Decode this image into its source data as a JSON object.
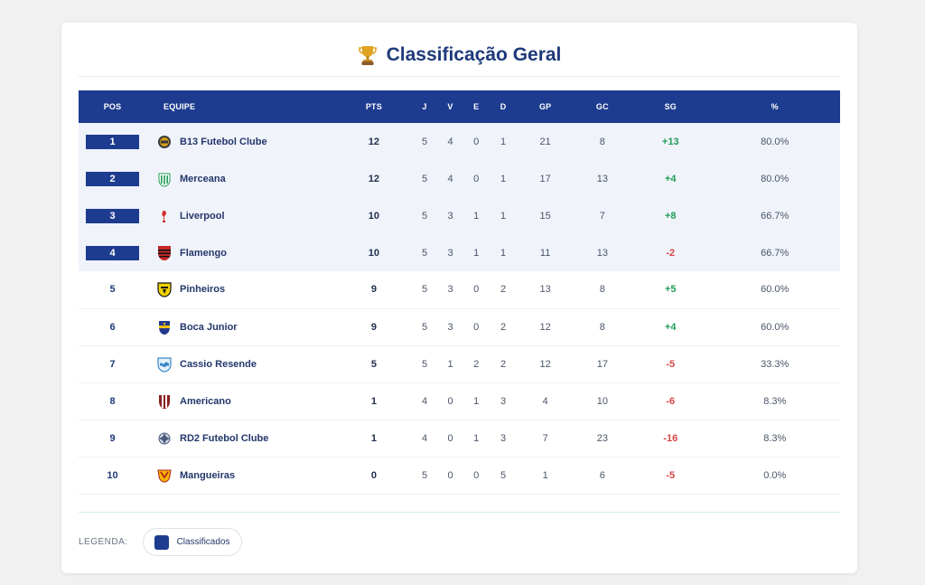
{
  "page": {
    "title": "Classificação Geral",
    "title_icon": "trophy-icon"
  },
  "colors": {
    "header_bg": "#1d3b8f",
    "qualified_bg": "#f0f3fa",
    "positive": "#1f9d55",
    "negative": "#d64545"
  },
  "table": {
    "headers": {
      "pos": "POS",
      "team": "EQUIPE",
      "pts": "PTS",
      "j": "J",
      "v": "V",
      "e": "E",
      "d": "D",
      "gp": "GP",
      "gc": "GC",
      "sg": "SG",
      "pct": "%"
    },
    "rows": [
      {
        "pos": "1",
        "team": "B13 Futebol Clube",
        "crest": "b13-crest-icon",
        "pts": "12",
        "j": "5",
        "v": "4",
        "e": "0",
        "d": "1",
        "gp": "21",
        "gc": "8",
        "sg": "+13",
        "pct": "80.0%",
        "qualified": true
      },
      {
        "pos": "2",
        "team": "Merceana",
        "crest": "merceana-crest-icon",
        "pts": "12",
        "j": "5",
        "v": "4",
        "e": "0",
        "d": "1",
        "gp": "17",
        "gc": "13",
        "sg": "+4",
        "pct": "80.0%",
        "qualified": true
      },
      {
        "pos": "3",
        "team": "Liverpool",
        "crest": "liverpool-crest-icon",
        "pts": "10",
        "j": "5",
        "v": "3",
        "e": "1",
        "d": "1",
        "gp": "15",
        "gc": "7",
        "sg": "+8",
        "pct": "66.7%",
        "qualified": true
      },
      {
        "pos": "4",
        "team": "Flamengo",
        "crest": "flamengo-crest-icon",
        "pts": "10",
        "j": "5",
        "v": "3",
        "e": "1",
        "d": "1",
        "gp": "11",
        "gc": "13",
        "sg": "-2",
        "pct": "66.7%",
        "qualified": true
      },
      {
        "pos": "5",
        "team": "Pinheiros",
        "crest": "pinheiros-crest-icon",
        "pts": "9",
        "j": "5",
        "v": "3",
        "e": "0",
        "d": "2",
        "gp": "13",
        "gc": "8",
        "sg": "+5",
        "pct": "60.0%",
        "qualified": false
      },
      {
        "pos": "6",
        "team": "Boca Junior",
        "crest": "boca-junior-crest-icon",
        "pts": "9",
        "j": "5",
        "v": "3",
        "e": "0",
        "d": "2",
        "gp": "12",
        "gc": "8",
        "sg": "+4",
        "pct": "60.0%",
        "qualified": false
      },
      {
        "pos": "7",
        "team": "Cassio Resende",
        "crest": "cassio-resende-crest-icon",
        "pts": "5",
        "j": "5",
        "v": "1",
        "e": "2",
        "d": "2",
        "gp": "12",
        "gc": "17",
        "sg": "-5",
        "pct": "33.3%",
        "qualified": false
      },
      {
        "pos": "8",
        "team": "Americano",
        "crest": "americano-crest-icon",
        "pts": "1",
        "j": "4",
        "v": "0",
        "e": "1",
        "d": "3",
        "gp": "4",
        "gc": "10",
        "sg": "-6",
        "pct": "8.3%",
        "qualified": false
      },
      {
        "pos": "9",
        "team": "RD2 Futebol Clube",
        "crest": "rd2-crest-icon",
        "pts": "1",
        "j": "4",
        "v": "0",
        "e": "1",
        "d": "3",
        "gp": "7",
        "gc": "23",
        "sg": "-16",
        "pct": "8.3%",
        "qualified": false
      },
      {
        "pos": "10",
        "team": "Mangueiras",
        "crest": "mangueiras-crest-icon",
        "pts": "0",
        "j": "5",
        "v": "0",
        "e": "0",
        "d": "5",
        "gp": "1",
        "gc": "6",
        "sg": "-5",
        "pct": "0.0%",
        "qualified": false
      }
    ]
  },
  "legend": {
    "label": "LEGENDA:",
    "items": [
      {
        "label": "Classificados",
        "color": "#1d3b8f"
      }
    ]
  }
}
